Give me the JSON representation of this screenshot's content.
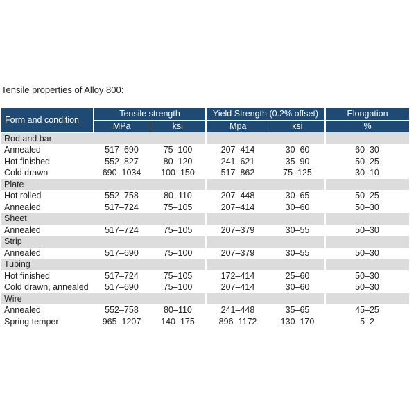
{
  "caption": "Tensile properties of Alloy 800:",
  "header": {
    "form_and_condition": "Form and condition",
    "tensile_strength": "Tensile strength",
    "yield_strength": "Yield Strength (0.2% offset)",
    "elongation": "Elongation",
    "units": {
      "ts_mpa": "MPa",
      "ts_ksi": "ksi",
      "ys_mpa": "Mpa",
      "ys_ksi": "ksi",
      "elong": "%"
    }
  },
  "colors": {
    "header_bg": "#1f4a74",
    "group_bg": "#dcdcdc"
  },
  "groups": [
    {
      "name": "Rod and bar",
      "rows": [
        {
          "condition": "Annealed",
          "ts_mpa": "517–690",
          "ts_ksi": "75–100",
          "ys_mpa": "207–414",
          "ys_ksi": "30–60",
          "elong": "60–30"
        },
        {
          "condition": "Hot finished",
          "ts_mpa": "552–827",
          "ts_ksi": "80–120",
          "ys_mpa": "241–621",
          "ys_ksi": "35–90",
          "elong": "50–25"
        },
        {
          "condition": "Cold drawn",
          "ts_mpa": "690–1034",
          "ts_ksi": "100–150",
          "ys_mpa": "517–862",
          "ys_ksi": "75–125",
          "elong": "30–10"
        }
      ]
    },
    {
      "name": "Plate",
      "rows": [
        {
          "condition": "Hot rolled",
          "ts_mpa": "552–758",
          "ts_ksi": "80–110",
          "ys_mpa": "207–448",
          "ys_ksi": "30–65",
          "elong": "50–25"
        },
        {
          "condition": "Annealed",
          "ts_mpa": "517–724",
          "ts_ksi": "75–105",
          "ys_mpa": "207–414",
          "ys_ksi": "30–60",
          "elong": "50–30"
        }
      ]
    },
    {
      "name": "Sheet",
      "rows": [
        {
          "condition": "Annealed",
          "ts_mpa": "517–724",
          "ts_ksi": "75–105",
          "ys_mpa": "207–379",
          "ys_ksi": "30–55",
          "elong": "50–30"
        }
      ]
    },
    {
      "name": "Strip",
      "rows": [
        {
          "condition": "Annealed",
          "ts_mpa": "517–690",
          "ts_ksi": "75–100",
          "ys_mpa": "207–379",
          "ys_ksi": "30–55",
          "elong": "50–30"
        }
      ]
    },
    {
      "name": "Tubing",
      "rows": [
        {
          "condition": "Hot finished",
          "ts_mpa": "517–724",
          "ts_ksi": "75–105",
          "ys_mpa": "172–414",
          "ys_ksi": "25–60",
          "elong": "50–30"
        },
        {
          "condition": "Cold drawn, annealed",
          "ts_mpa": "517–690",
          "ts_ksi": "75–100",
          "ys_mpa": "207–414",
          "ys_ksi": "30–60",
          "elong": "50–30"
        }
      ]
    },
    {
      "name": "Wire",
      "rows": [
        {
          "condition": "Annealed",
          "ts_mpa": "552–758",
          "ts_ksi": "80–110",
          "ys_mpa": "241–448",
          "ys_ksi": "35–65",
          "elong": "45–25"
        },
        {
          "condition": "Spring temper",
          "ts_mpa": "965–1207",
          "ts_ksi": "140–175",
          "ys_mpa": "896–1172",
          "ys_ksi": "130–170",
          "elong": "5–2"
        }
      ]
    }
  ]
}
